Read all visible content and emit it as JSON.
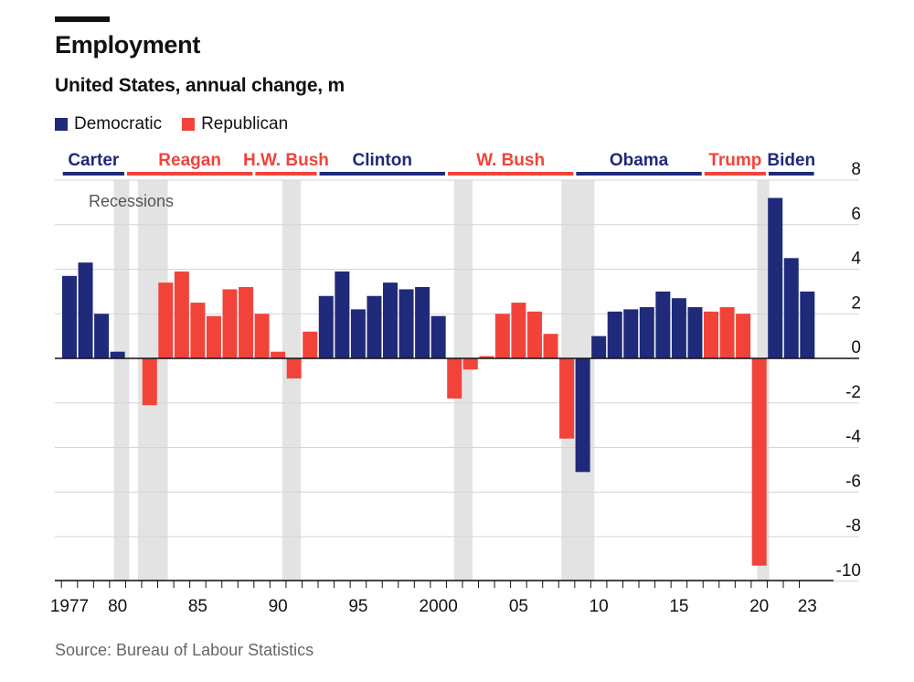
{
  "header": {
    "title": "Employment",
    "subtitle": "United States, annual change, m"
  },
  "legend": [
    {
      "label": "Democratic",
      "color": "#1f2a7a"
    },
    {
      "label": "Republican",
      "color": "#f2433a"
    }
  ],
  "source": "Source: Bureau of Labour Statistics",
  "chart_data": {
    "type": "bar",
    "title": "Employment",
    "subtitle": "United States, annual change, m",
    "ylabel": "",
    "xlabel": "",
    "ylim": [
      -10,
      8
    ],
    "yticks": [
      8,
      6,
      4,
      2,
      0,
      -2,
      -4,
      -6,
      -8,
      -10
    ],
    "x_tick_labels": [
      {
        "year": 1977,
        "label": "1977"
      },
      {
        "year": 1980,
        "label": "80"
      },
      {
        "year": 1985,
        "label": "85"
      },
      {
        "year": 1990,
        "label": "90"
      },
      {
        "year": 1995,
        "label": "95"
      },
      {
        "year": 2000,
        "label": "2000"
      },
      {
        "year": 2005,
        "label": "05"
      },
      {
        "year": 2010,
        "label": "10"
      },
      {
        "year": 2015,
        "label": "15"
      },
      {
        "year": 2020,
        "label": "20"
      },
      {
        "year": 2023,
        "label": "23"
      }
    ],
    "years": [
      1977,
      1978,
      1979,
      1980,
      1981,
      1982,
      1983,
      1984,
      1985,
      1986,
      1987,
      1988,
      1989,
      1990,
      1991,
      1992,
      1993,
      1994,
      1995,
      1996,
      1997,
      1998,
      1999,
      2000,
      2001,
      2002,
      2003,
      2004,
      2005,
      2006,
      2007,
      2008,
      2009,
      2010,
      2011,
      2012,
      2013,
      2014,
      2015,
      2016,
      2017,
      2018,
      2019,
      2020,
      2021,
      2022,
      2023
    ],
    "values": [
      3.7,
      4.3,
      2.0,
      0.3,
      0.0,
      -2.1,
      3.4,
      3.9,
      2.5,
      1.9,
      3.1,
      3.2,
      2.0,
      0.3,
      -0.9,
      1.2,
      2.8,
      3.9,
      2.2,
      2.8,
      3.4,
      3.1,
      3.2,
      1.9,
      -1.8,
      -0.5,
      0.1,
      2.0,
      2.5,
      2.1,
      1.1,
      -3.6,
      -5.1,
      1.0,
      2.1,
      2.2,
      2.3,
      3.0,
      2.7,
      2.3,
      2.1,
      2.3,
      2.0,
      -9.3,
      7.2,
      4.5,
      3.0
    ],
    "party": [
      "D",
      "D",
      "D",
      "D",
      "R",
      "R",
      "R",
      "R",
      "R",
      "R",
      "R",
      "R",
      "R",
      "R",
      "R",
      "R",
      "D",
      "D",
      "D",
      "D",
      "D",
      "D",
      "D",
      "D",
      "R",
      "R",
      "R",
      "R",
      "R",
      "R",
      "R",
      "R",
      "D",
      "D",
      "D",
      "D",
      "D",
      "D",
      "D",
      "D",
      "R",
      "R",
      "R",
      "R",
      "D",
      "D",
      "D"
    ],
    "presidents": [
      {
        "name": "Carter",
        "party": "D",
        "start": 1977,
        "end": 1980
      },
      {
        "name": "Reagan",
        "party": "R",
        "start": 1981,
        "end": 1988
      },
      {
        "name": "H.W. Bush",
        "party": "R",
        "start": 1989,
        "end": 1992
      },
      {
        "name": "Clinton",
        "party": "D",
        "start": 1993,
        "end": 2000
      },
      {
        "name": "W. Bush",
        "party": "R",
        "start": 2001,
        "end": 2008
      },
      {
        "name": "Obama",
        "party": "D",
        "start": 2009,
        "end": 2016
      },
      {
        "name": "Trump",
        "party": "R",
        "start": 2017,
        "end": 2020
      },
      {
        "name": "Biden",
        "party": "D",
        "start": 2021,
        "end": 2023
      }
    ],
    "recessions": [
      {
        "start": 1980.0,
        "end": 1980.5
      },
      {
        "start": 1981.5,
        "end": 1982.9
      },
      {
        "start": 1990.5,
        "end": 1991.2
      },
      {
        "start": 2001.2,
        "end": 2001.9
      },
      {
        "start": 2007.9,
        "end": 2009.5
      },
      {
        "start": 2020.1,
        "end": 2020.4
      }
    ],
    "recession_label": "Recessions",
    "colors": {
      "D": "#1f2a7a",
      "R": "#f2433a",
      "recession": "#e3e3e3",
      "grid": "#d4d4d4",
      "axis": "#111111"
    }
  }
}
